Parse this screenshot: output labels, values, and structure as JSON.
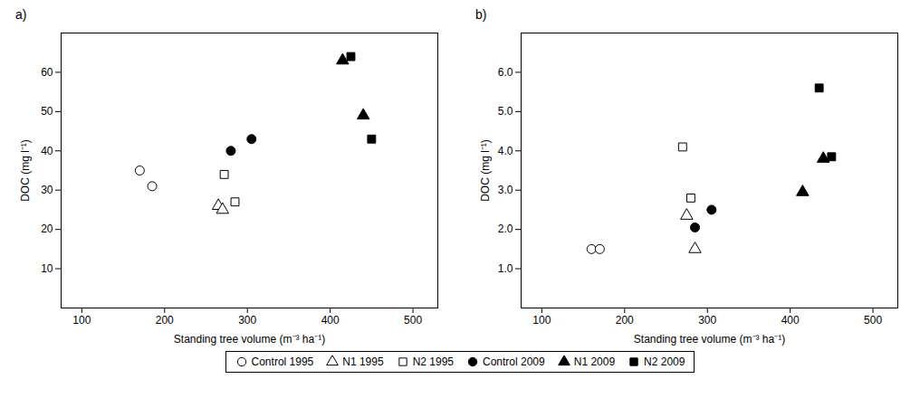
{
  "chart_data": [
    {
      "type": "scatter",
      "title": "a)",
      "xlabel": "Standing tree volume (m⁻³ ha⁻¹)",
      "ylabel": "DOC (mg l⁻¹)",
      "xlim": [
        75,
        530
      ],
      "xticks": [
        100,
        200,
        300,
        400,
        500
      ],
      "ylim": [
        0,
        70
      ],
      "yticks": [
        10,
        20,
        30,
        40,
        50,
        60
      ],
      "legend": "bottom",
      "series": [
        {
          "name": "Control 1995",
          "marker": "circle",
          "color": "white",
          "x": [
            170,
            185
          ],
          "values": [
            35,
            31
          ]
        },
        {
          "name": "N1 1995",
          "marker": "triangle",
          "color": "white",
          "x": [
            265,
            270
          ],
          "values": [
            26,
            25
          ]
        },
        {
          "name": "N2 1995",
          "marker": "square",
          "color": "white",
          "x": [
            272,
            285
          ],
          "values": [
            34,
            27
          ]
        },
        {
          "name": "Control 2009",
          "marker": "circle",
          "color": "black",
          "x": [
            280,
            305
          ],
          "values": [
            40,
            43
          ]
        },
        {
          "name": "N1 2009",
          "marker": "triangle",
          "color": "black",
          "x": [
            415,
            440
          ],
          "values": [
            63,
            49
          ]
        },
        {
          "name": "N2 2009",
          "marker": "square",
          "color": "black",
          "x": [
            425,
            450
          ],
          "values": [
            64,
            43
          ]
        }
      ]
    },
    {
      "type": "scatter",
      "title": "b)",
      "xlabel": "Standing tree volume (m⁻³ ha⁻¹)",
      "ylabel": "DOC (mg l⁻¹)",
      "xlim": [
        75,
        530
      ],
      "xticks": [
        100,
        200,
        300,
        400,
        500
      ],
      "ylim": [
        0,
        7
      ],
      "yticks": [
        1,
        2,
        3,
        4,
        5,
        6
      ],
      "legend": "bottom",
      "series": [
        {
          "name": "Control 1995",
          "marker": "circle",
          "color": "white",
          "x": [
            160,
            170
          ],
          "values": [
            1.5,
            1.5
          ]
        },
        {
          "name": "N1 1995",
          "marker": "triangle",
          "color": "white",
          "x": [
            275,
            285
          ],
          "values": [
            2.35,
            1.5
          ]
        },
        {
          "name": "N2 1995",
          "marker": "square",
          "color": "white",
          "x": [
            270,
            280
          ],
          "values": [
            4.1,
            2.8
          ]
        },
        {
          "name": "Control 2009",
          "marker": "circle",
          "color": "black",
          "x": [
            285,
            305
          ],
          "values": [
            2.05,
            2.5
          ]
        },
        {
          "name": "N1 2009",
          "marker": "triangle",
          "color": "black",
          "x": [
            415,
            440
          ],
          "values": [
            2.95,
            3.8
          ]
        },
        {
          "name": "N2 2009",
          "marker": "square",
          "color": "black",
          "x": [
            435,
            450
          ],
          "values": [
            5.6,
            3.85
          ]
        }
      ]
    }
  ]
}
